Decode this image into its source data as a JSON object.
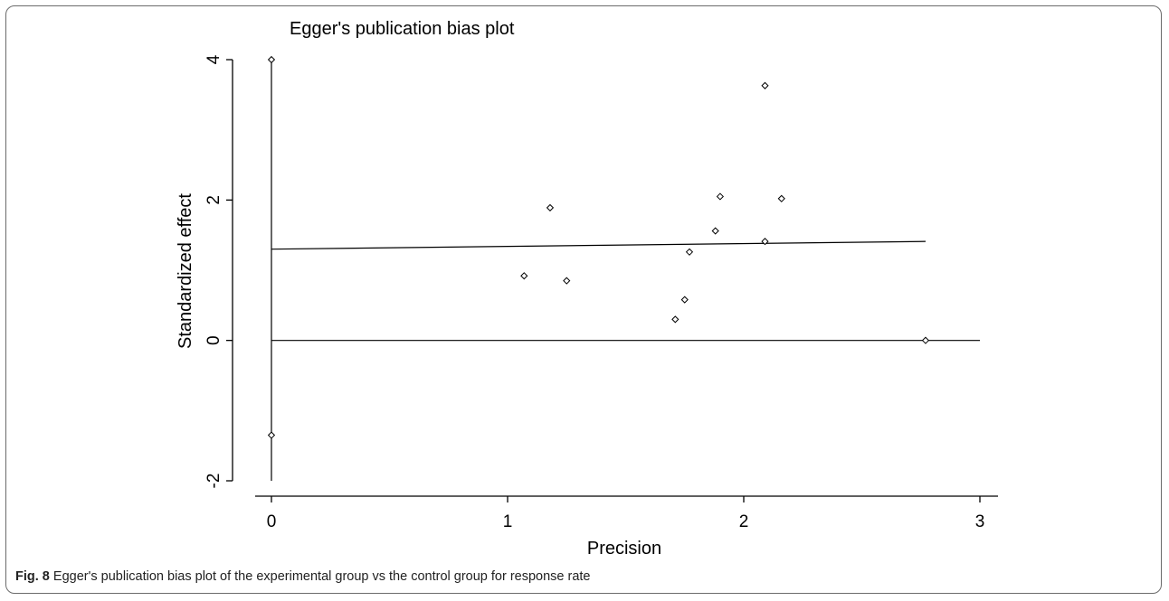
{
  "chart_data": {
    "type": "scatter",
    "title": "Egger's publication bias plot",
    "xlabel": "Precision",
    "ylabel": "Standardized effect",
    "xlim": [
      0,
      3
    ],
    "ylim": [
      -2,
      4
    ],
    "xticks": [
      0,
      1,
      2,
      3
    ],
    "yticks": [
      -2,
      0,
      2,
      4
    ],
    "grid": false,
    "points": [
      {
        "x": 0,
        "y": 4.0
      },
      {
        "x": 0,
        "y": -1.35
      },
      {
        "x": 1.07,
        "y": 0.92
      },
      {
        "x": 1.18,
        "y": 1.89
      },
      {
        "x": 1.25,
        "y": 0.85
      },
      {
        "x": 1.71,
        "y": 0.3
      },
      {
        "x": 1.75,
        "y": 0.58
      },
      {
        "x": 1.77,
        "y": 1.26
      },
      {
        "x": 1.88,
        "y": 1.56
      },
      {
        "x": 1.9,
        "y": 2.05
      },
      {
        "x": 2.09,
        "y": 3.63
      },
      {
        "x": 2.09,
        "y": 1.41
      },
      {
        "x": 2.16,
        "y": 2.02
      },
      {
        "x": 2.77,
        "y": 0.0
      }
    ],
    "lines": [
      {
        "x": [
          0,
          2.77
        ],
        "y": [
          1.3,
          1.41
        ]
      },
      {
        "x": [
          0,
          3.0
        ],
        "y": [
          0,
          0
        ]
      },
      {
        "x": [
          0,
          0
        ],
        "y": [
          -2,
          4
        ]
      }
    ]
  },
  "caption": {
    "label": "Fig. 8",
    "text": " Egger's publication bias plot of the experimental group vs the control group for response rate"
  }
}
